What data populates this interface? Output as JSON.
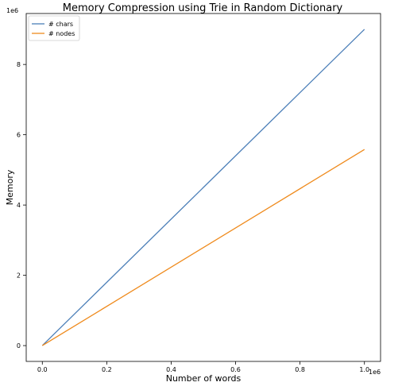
{
  "chart_data": {
    "type": "line",
    "title": "Memory Compression using Trie in Random Dictionary",
    "xlabel": "Number of words",
    "ylabel": "Memory",
    "x_offset_label": "1e6",
    "y_offset_label": "1e6",
    "xlim": [
      -0.05,
      1.05
    ],
    "ylim": [
      -0.45,
      9.45
    ],
    "xticks": [
      0.0,
      0.2,
      0.4,
      0.6,
      0.8,
      1.0
    ],
    "xtick_labels": [
      "0.0",
      "0.2",
      "0.4",
      "0.6",
      "0.8",
      "1.0"
    ],
    "yticks": [
      0,
      2,
      4,
      6,
      8
    ],
    "ytick_labels": [
      "0",
      "2",
      "4",
      "6",
      "8"
    ],
    "grid": false,
    "legend_position": "top-left",
    "series": [
      {
        "name": "# chars",
        "color": "#4c7fb8",
        "x": [
          0.0,
          1.0
        ],
        "y": [
          0.0,
          9.0
        ]
      },
      {
        "name": "# nodes",
        "color": "#ef8a1c",
        "x": [
          0.0,
          1.0
        ],
        "y": [
          0.0,
          5.58
        ]
      }
    ]
  }
}
